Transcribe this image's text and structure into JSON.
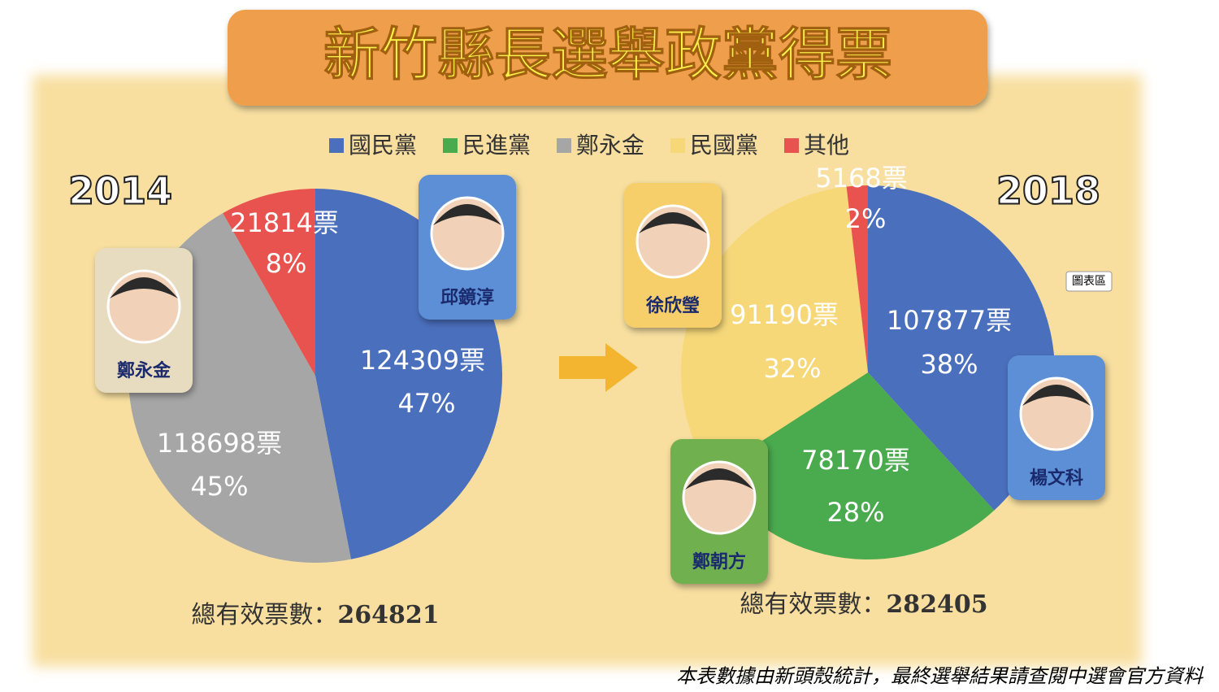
{
  "title": "新竹縣長選舉政黨得票",
  "legend": [
    {
      "name": "國民黨",
      "color": "#4a6fbd"
    },
    {
      "name": "民進黨",
      "color": "#4aaa4e"
    },
    {
      "name": "鄭永金",
      "color": "#a6a6a6"
    },
    {
      "name": "民國黨",
      "color": "#f6d879"
    },
    {
      "name": "其他",
      "color": "#e8534f"
    }
  ],
  "chart_area_label": "圖表區",
  "footnote": "本表數據由新頭殼統計，最終選舉結果請查閱中選會官方資料",
  "chart_data": [
    {
      "type": "pie",
      "title": "2014",
      "categories": [
        "國民黨",
        "鄭永金",
        "其他"
      ],
      "values": [
        124309,
        118698,
        21814
      ],
      "value_labels": [
        "124309票",
        "118698票",
        "21814票"
      ],
      "percents": [
        47,
        45,
        8
      ],
      "percent_labels": [
        "47%",
        "45%",
        "8%"
      ],
      "colors": [
        "#4a6fbd",
        "#a6a6a6",
        "#e8534f"
      ],
      "candidates": [
        "邱鏡淳",
        "鄭永金"
      ],
      "total_label": "總有效票數：",
      "total": 264821
    },
    {
      "type": "pie",
      "title": "2018",
      "categories": [
        "國民黨",
        "民進黨",
        "民國黨",
        "其他"
      ],
      "values": [
        107877,
        78170,
        91190,
        5168
      ],
      "value_labels": [
        "107877票",
        "78170票",
        "91190票",
        "5168票"
      ],
      "percents": [
        38,
        28,
        32,
        2
      ],
      "percent_labels": [
        "38%",
        "28%",
        "32%",
        "2%"
      ],
      "colors": [
        "#4a6fbd",
        "#4aaa4e",
        "#f6d879",
        "#e8534f"
      ],
      "candidates": [
        "徐欣瑩",
        "楊文科",
        "鄭朝方"
      ],
      "total_label": "總有效票數：",
      "total": 282405
    }
  ]
}
